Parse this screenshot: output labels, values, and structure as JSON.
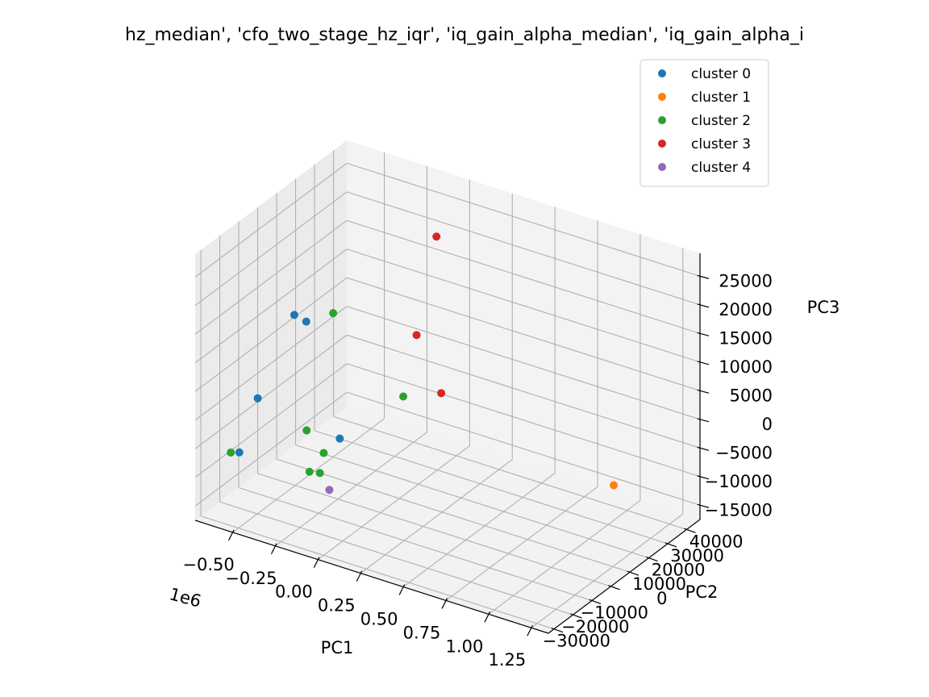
{
  "chart_data": {
    "type": "scatter",
    "title": "hz_median', 'cfo_two_stage_hz_iqr', 'iq_gain_alpha_median', 'iq_gain_alpha_i",
    "projection": "3d",
    "axes": {
      "x": {
        "label": "PC1",
        "offset_text": "1e6",
        "ticks": [
          "−0.50",
          "−0.25",
          "0.00",
          "0.25",
          "0.50",
          "0.75",
          "1.00",
          "1.25"
        ]
      },
      "y": {
        "label": "PC2",
        "ticks": [
          "−30000",
          "−20000",
          "−10000",
          "0",
          "10000",
          "20000",
          "30000",
          "40000"
        ]
      },
      "z": {
        "label": "PC3",
        "ticks": [
          "−15000",
          "−10000",
          "−5000",
          "0",
          "5000",
          "10000",
          "15000",
          "20000",
          "25000"
        ]
      }
    },
    "grid": true,
    "legend_position": "top-right",
    "series": [
      {
        "name": "cluster 0",
        "color": "#1f77b4",
        "points": [
          {
            "x": -0.45,
            "y": -5000,
            "z": 14000
          },
          {
            "x": -0.38,
            "y": -5000,
            "z": 13500
          },
          {
            "x": -0.52,
            "y": -18000,
            "z": 2000
          },
          {
            "x": -0.15,
            "y": -8000,
            "z": -4000
          },
          {
            "x": -0.55,
            "y": -25000,
            "z": -6000
          }
        ]
      },
      {
        "name": "cluster 1",
        "color": "#ff7f0e",
        "points": [
          {
            "x": 1.2,
            "y": 15000,
            "z": -5000
          }
        ]
      },
      {
        "name": "cluster 2",
        "color": "#2ca02c",
        "points": [
          {
            "x": -0.3,
            "y": 2000,
            "z": 14000
          },
          {
            "x": 0.1,
            "y": 3000,
            "z": 3000
          },
          {
            "x": -0.3,
            "y": -12000,
            "z": -3000
          },
          {
            "x": -0.2,
            "y": -12000,
            "z": -6000
          },
          {
            "x": -0.6,
            "y": -25000,
            "z": -6500
          },
          {
            "x": -0.2,
            "y": -14000,
            "z": -9000
          },
          {
            "x": -0.25,
            "y": -15000,
            "z": -9000
          }
        ]
      },
      {
        "name": "cluster 3",
        "color": "#d62728",
        "points": [
          {
            "x": 0.05,
            "y": 25000,
            "z": 25000
          },
          {
            "x": 0.1,
            "y": 10000,
            "z": 12000
          },
          {
            "x": 0.3,
            "y": 5000,
            "z": 5000
          }
        ]
      },
      {
        "name": "cluster 4",
        "color": "#9467bd",
        "points": [
          {
            "x": -0.1,
            "y": -18000,
            "z": -10000
          }
        ]
      }
    ]
  }
}
